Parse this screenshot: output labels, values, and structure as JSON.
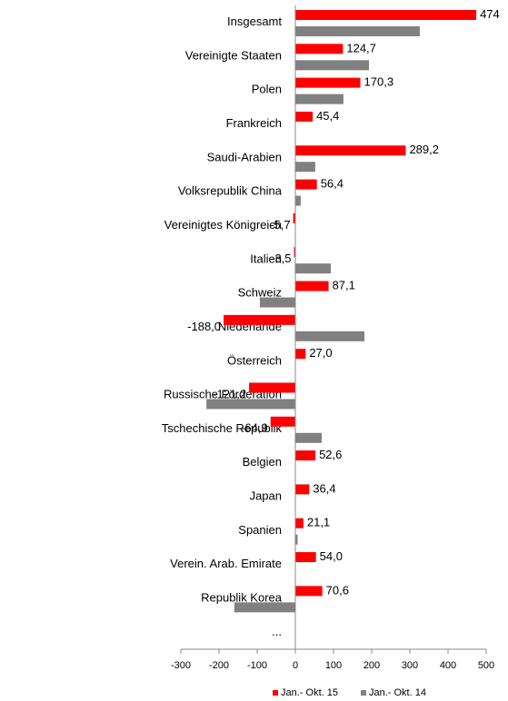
{
  "chart_data": {
    "type": "hbar",
    "categories": [
      "Insgesamt",
      "Vereinigte Staaten",
      "Polen",
      "Frankreich",
      "Saudi-Arabien",
      "Volksrepublik China",
      "Vereinigtes Königreich",
      "Italien",
      "Schweiz",
      "Niederlande",
      "Österreich",
      "Russische Förderation",
      "Tschechische Republik",
      "Belgien",
      "Japan",
      "Spanien",
      "Verein. Arab. Emirate",
      "Republik Korea",
      "..."
    ],
    "series": [
      {
        "name": "Jan.- Okt. 15",
        "color": "#ff0000",
        "values": [
          474,
          124.7,
          170.3,
          45.4,
          289.2,
          56.4,
          -5.7,
          -3.5,
          87.1,
          -188.0,
          27.0,
          -121.2,
          -64.9,
          52.6,
          36.4,
          21.1,
          54.0,
          70.6,
          null
        ],
        "value_labels": [
          "474",
          "124,7",
          "170,3",
          "45,4",
          "289,2",
          "56,4",
          "-5,7",
          "-3,5",
          "87,1",
          "-188,0",
          "27,0",
          "-121,2",
          "-64,9",
          "52,6",
          "36,4",
          "21,1",
          "54,0",
          "70,6",
          null
        ]
      },
      {
        "name": "Jan.- Okt. 14",
        "color": "#808080",
        "values": [
          326,
          193,
          126,
          1,
          52,
          14,
          1,
          93,
          -93,
          181,
          1,
          -233,
          69,
          1,
          1,
          6,
          1,
          -160,
          null
        ]
      }
    ],
    "xlim": [
      -300,
      500
    ],
    "xticks": [
      -300,
      -200,
      -100,
      0,
      100,
      200,
      300,
      400,
      500
    ],
    "legend": "bottom"
  }
}
